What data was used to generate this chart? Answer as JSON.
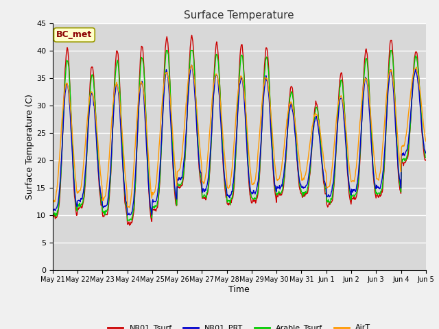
{
  "title": "Surface Temperature",
  "xlabel": "Time",
  "ylabel": "Surface Temperature (C)",
  "annotation": "BC_met",
  "ylim": [
    0,
    45
  ],
  "yticks": [
    0,
    5,
    10,
    15,
    20,
    25,
    30,
    35,
    40,
    45
  ],
  "series_colors": {
    "NR01_Tsurf": "#cc0000",
    "NR01_PRT": "#0000cc",
    "Arable_Tsurf": "#00cc00",
    "AirT": "#ff9900"
  },
  "bg_color": "#d8d8d8",
  "grid_color": "#ffffff",
  "n_days": 15,
  "pts_per_day": 48,
  "tick_labels": [
    "May 21",
    "May 22",
    "May 23",
    "May 24",
    "May 25",
    "May 26",
    "May 27",
    "May 28",
    "May 29",
    "May 30",
    "May 31",
    "Jun 1",
    "Jun 2",
    "Jun 3",
    "Jun 4",
    "Jun 5"
  ],
  "day_maxs": [
    40.2,
    37.2,
    40.0,
    41.0,
    42.5,
    42.5,
    41.2,
    41.0,
    40.5,
    33.5,
    30.5,
    36.0,
    40.2,
    42.0,
    40.0
  ],
  "day_mins": [
    9.5,
    11.2,
    10.0,
    8.5,
    11.0,
    15.0,
    13.0,
    12.0,
    12.5,
    13.5,
    13.5,
    12.0,
    13.0,
    13.5,
    19.5
  ],
  "peak_hour": 14,
  "sharpness": 4.0
}
